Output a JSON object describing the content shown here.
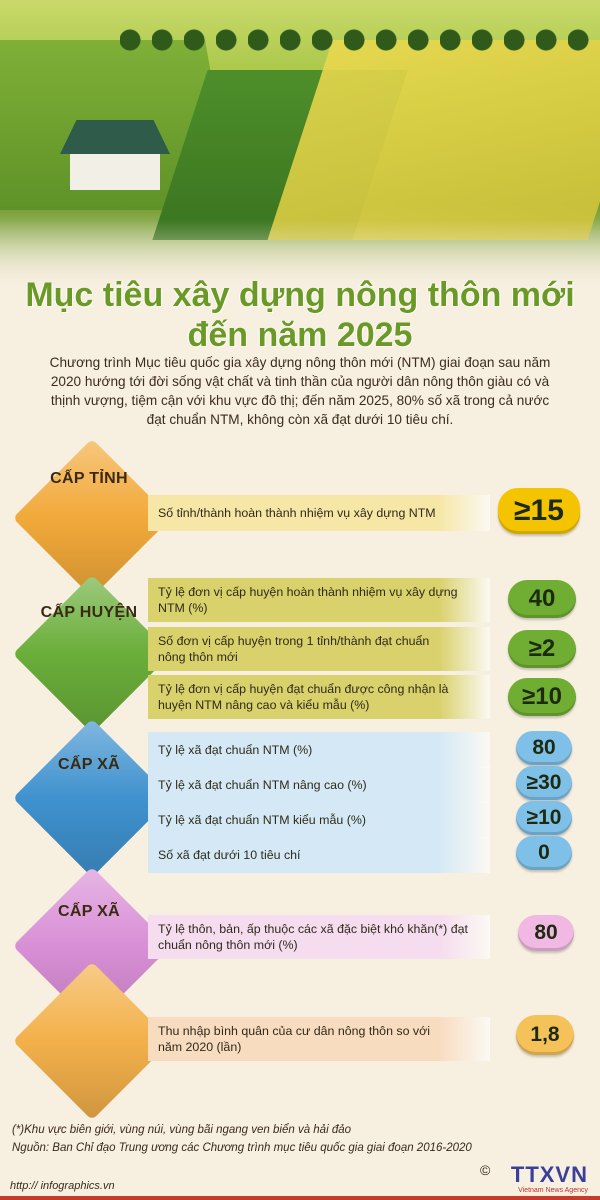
{
  "title_line1": "Mục tiêu xây dựng nông thôn mới",
  "title_line2": "đến năm 2025",
  "intro": "Chương trình Mục tiêu quốc gia xây dựng nông thôn mới (NTM) giai đoạn sau năm 2020 hướng tới đời sống vật chất và tinh thần của người dân nông thôn giàu có và thịnh vượng, tiệm cận với khu vực đô thị; đến năm 2025, 80% số xã trong cả nước đạt chuẩn NTM, không còn xã đạt dưới 10 tiêu chí.",
  "sections": [
    {
      "label": "CẤP TỈNH",
      "color": "#f2a93a",
      "row_color": "#f6e7a6",
      "badge_color": "#f5c400",
      "rows": [
        {
          "text": "Số tỉnh/thành hoàn thành nhiệm vụ xây dựng NTM",
          "value": "≥15"
        }
      ]
    },
    {
      "label": "CẤP HUYỆN",
      "color": "#6aae3a",
      "row_color": "#d9d16b",
      "badge_color": "#6fae32",
      "rows": [
        {
          "text": "Tỷ lệ đơn vị cấp huyện hoàn thành nhiệm vụ xây dựng NTM (%)",
          "value": "40"
        },
        {
          "text": "Số đơn vị cấp huyện trong 1 tỉnh/thành đạt chuẩn nông thôn mới",
          "value": "≥2"
        },
        {
          "text": "Tỷ lệ đơn vị cấp huyện đạt chuẩn được công nhận là huyện NTM nâng cao và kiểu mẫu (%)",
          "value": "≥10"
        }
      ]
    },
    {
      "label": "CẤP XÃ",
      "color": "#3f92cf",
      "row_color": "#d4e9f5",
      "badge_color": "#7fc0e8",
      "rows": [
        {
          "text": "Tỷ lệ xã đạt chuẩn NTM (%)",
          "value": "80"
        },
        {
          "text": "Tỷ lệ xã đạt chuẩn NTM nâng cao (%)",
          "value": "≥30"
        },
        {
          "text": "Tỷ lệ xã đạt chuẩn NTM kiểu mẫu (%)",
          "value": "≥10"
        },
        {
          "text": "Số xã đạt dưới 10 tiêu chí",
          "value": "0"
        }
      ]
    },
    {
      "label": "CẤP XÃ",
      "color": "#d98fd6",
      "row_color": "#f5dcef",
      "badge_color": "#f0b8e2",
      "rows": [
        {
          "text": "Tỷ lệ thôn, bản, ấp thuộc các xã đặc biệt khó khăn(*) đạt chuẩn nông thôn mới (%)",
          "value": "80"
        }
      ]
    },
    {
      "label": "",
      "color": "#f3b04a",
      "row_color": "#f8dcc0",
      "badge_color": "#f5c25a",
      "rows": [
        {
          "text": "Thu nhập bình quân của cư dân nông thôn so với năm 2020 (lần)",
          "value": "1,8"
        }
      ]
    }
  ],
  "footnote": "(*)Khu vực biên giới, vùng núi, vùng bãi ngang ven biển và hải đảo",
  "source": "Nguồn: Ban Chỉ đạo Trung ương các Chương trình mục tiêu quốc gia giai đoạn 2016-2020",
  "url": "http:// infographics.vn",
  "copyright": "©",
  "logo_text": "TTXVN",
  "logo_sub": "Vietnam News Agency"
}
